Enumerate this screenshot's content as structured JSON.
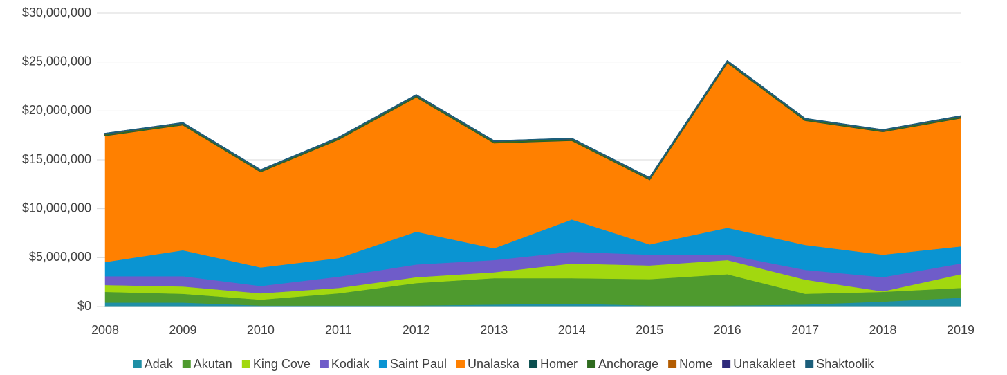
{
  "chart_data": {
    "type": "stacked_area",
    "categories": [
      "2008",
      "2009",
      "2010",
      "2011",
      "2012",
      "2013",
      "2014",
      "2015",
      "2016",
      "2017",
      "2018",
      "2019"
    ],
    "ylim": [
      0,
      30000000
    ],
    "yticks": [
      {
        "value": 0,
        "label": "$0"
      },
      {
        "value": 5000000,
        "label": "$5,000,000"
      },
      {
        "value": 10000000,
        "label": "$10,000,000"
      },
      {
        "value": 15000000,
        "label": "$15,000,000"
      },
      {
        "value": 20000000,
        "label": "$20,000,000"
      },
      {
        "value": 25000000,
        "label": "$25,000,000"
      },
      {
        "value": 30000000,
        "label": "$30,000,000"
      }
    ],
    "grid": true,
    "legend": "bottom",
    "series": [
      {
        "name": "Adak",
        "color": "#1f8fa5",
        "values": [
          400000,
          400000,
          100000,
          100000,
          100000,
          200000,
          300000,
          100000,
          100000,
          200000,
          500000,
          900000
        ]
      },
      {
        "name": "Akutan",
        "color": "#4e9a2e",
        "values": [
          1100000,
          900000,
          600000,
          1250000,
          2300000,
          2700000,
          2600000,
          2700000,
          3200000,
          1100000,
          1000000,
          1000000
        ]
      },
      {
        "name": "King Cove",
        "color": "#a2d80f",
        "values": [
          700000,
          750000,
          650000,
          550000,
          600000,
          600000,
          1500000,
          1400000,
          1450000,
          1450000,
          50000,
          1400000
        ]
      },
      {
        "name": "Kodiak",
        "color": "#6f5cc9",
        "values": [
          900000,
          1050000,
          750000,
          1150000,
          1300000,
          1250000,
          1200000,
          1100000,
          550000,
          1000000,
          1450000,
          1100000
        ]
      },
      {
        "name": "Saint Paul",
        "color": "#0a94d2",
        "values": [
          1450000,
          2650000,
          1900000,
          1900000,
          3350000,
          1200000,
          3300000,
          1050000,
          2750000,
          2550000,
          2300000,
          1750000
        ]
      },
      {
        "name": "Unalaska",
        "color": "#ff8000",
        "values": [
          12950000,
          12850000,
          9800000,
          12150000,
          13800000,
          10800000,
          8100000,
          6650000,
          16900000,
          12750000,
          12600000,
          13150000
        ]
      },
      {
        "name": "Homer",
        "color": "#0b4f4f",
        "values": [
          30000,
          30000,
          30000,
          30000,
          30000,
          30000,
          30000,
          30000,
          30000,
          30000,
          30000,
          30000
        ]
      },
      {
        "name": "Anchorage",
        "color": "#2f6b1f",
        "values": [
          120000,
          120000,
          100000,
          120000,
          120000,
          120000,
          120000,
          100000,
          100000,
          100000,
          100000,
          120000
        ]
      },
      {
        "name": "Nome",
        "color": "#b35c00",
        "values": [
          10000,
          10000,
          10000,
          10000,
          10000,
          10000,
          10000,
          10000,
          10000,
          10000,
          10000,
          10000
        ]
      },
      {
        "name": "Unakakleet",
        "color": "#2e2a7a",
        "values": [
          10000,
          10000,
          10000,
          10000,
          10000,
          10000,
          10000,
          10000,
          10000,
          10000,
          10000,
          10000
        ]
      },
      {
        "name": "Shaktoolik",
        "color": "#1b5e7a",
        "values": [
          10000,
          10000,
          10000,
          10000,
          10000,
          10000,
          10000,
          10000,
          10000,
          10000,
          10000,
          10000
        ]
      }
    ]
  }
}
